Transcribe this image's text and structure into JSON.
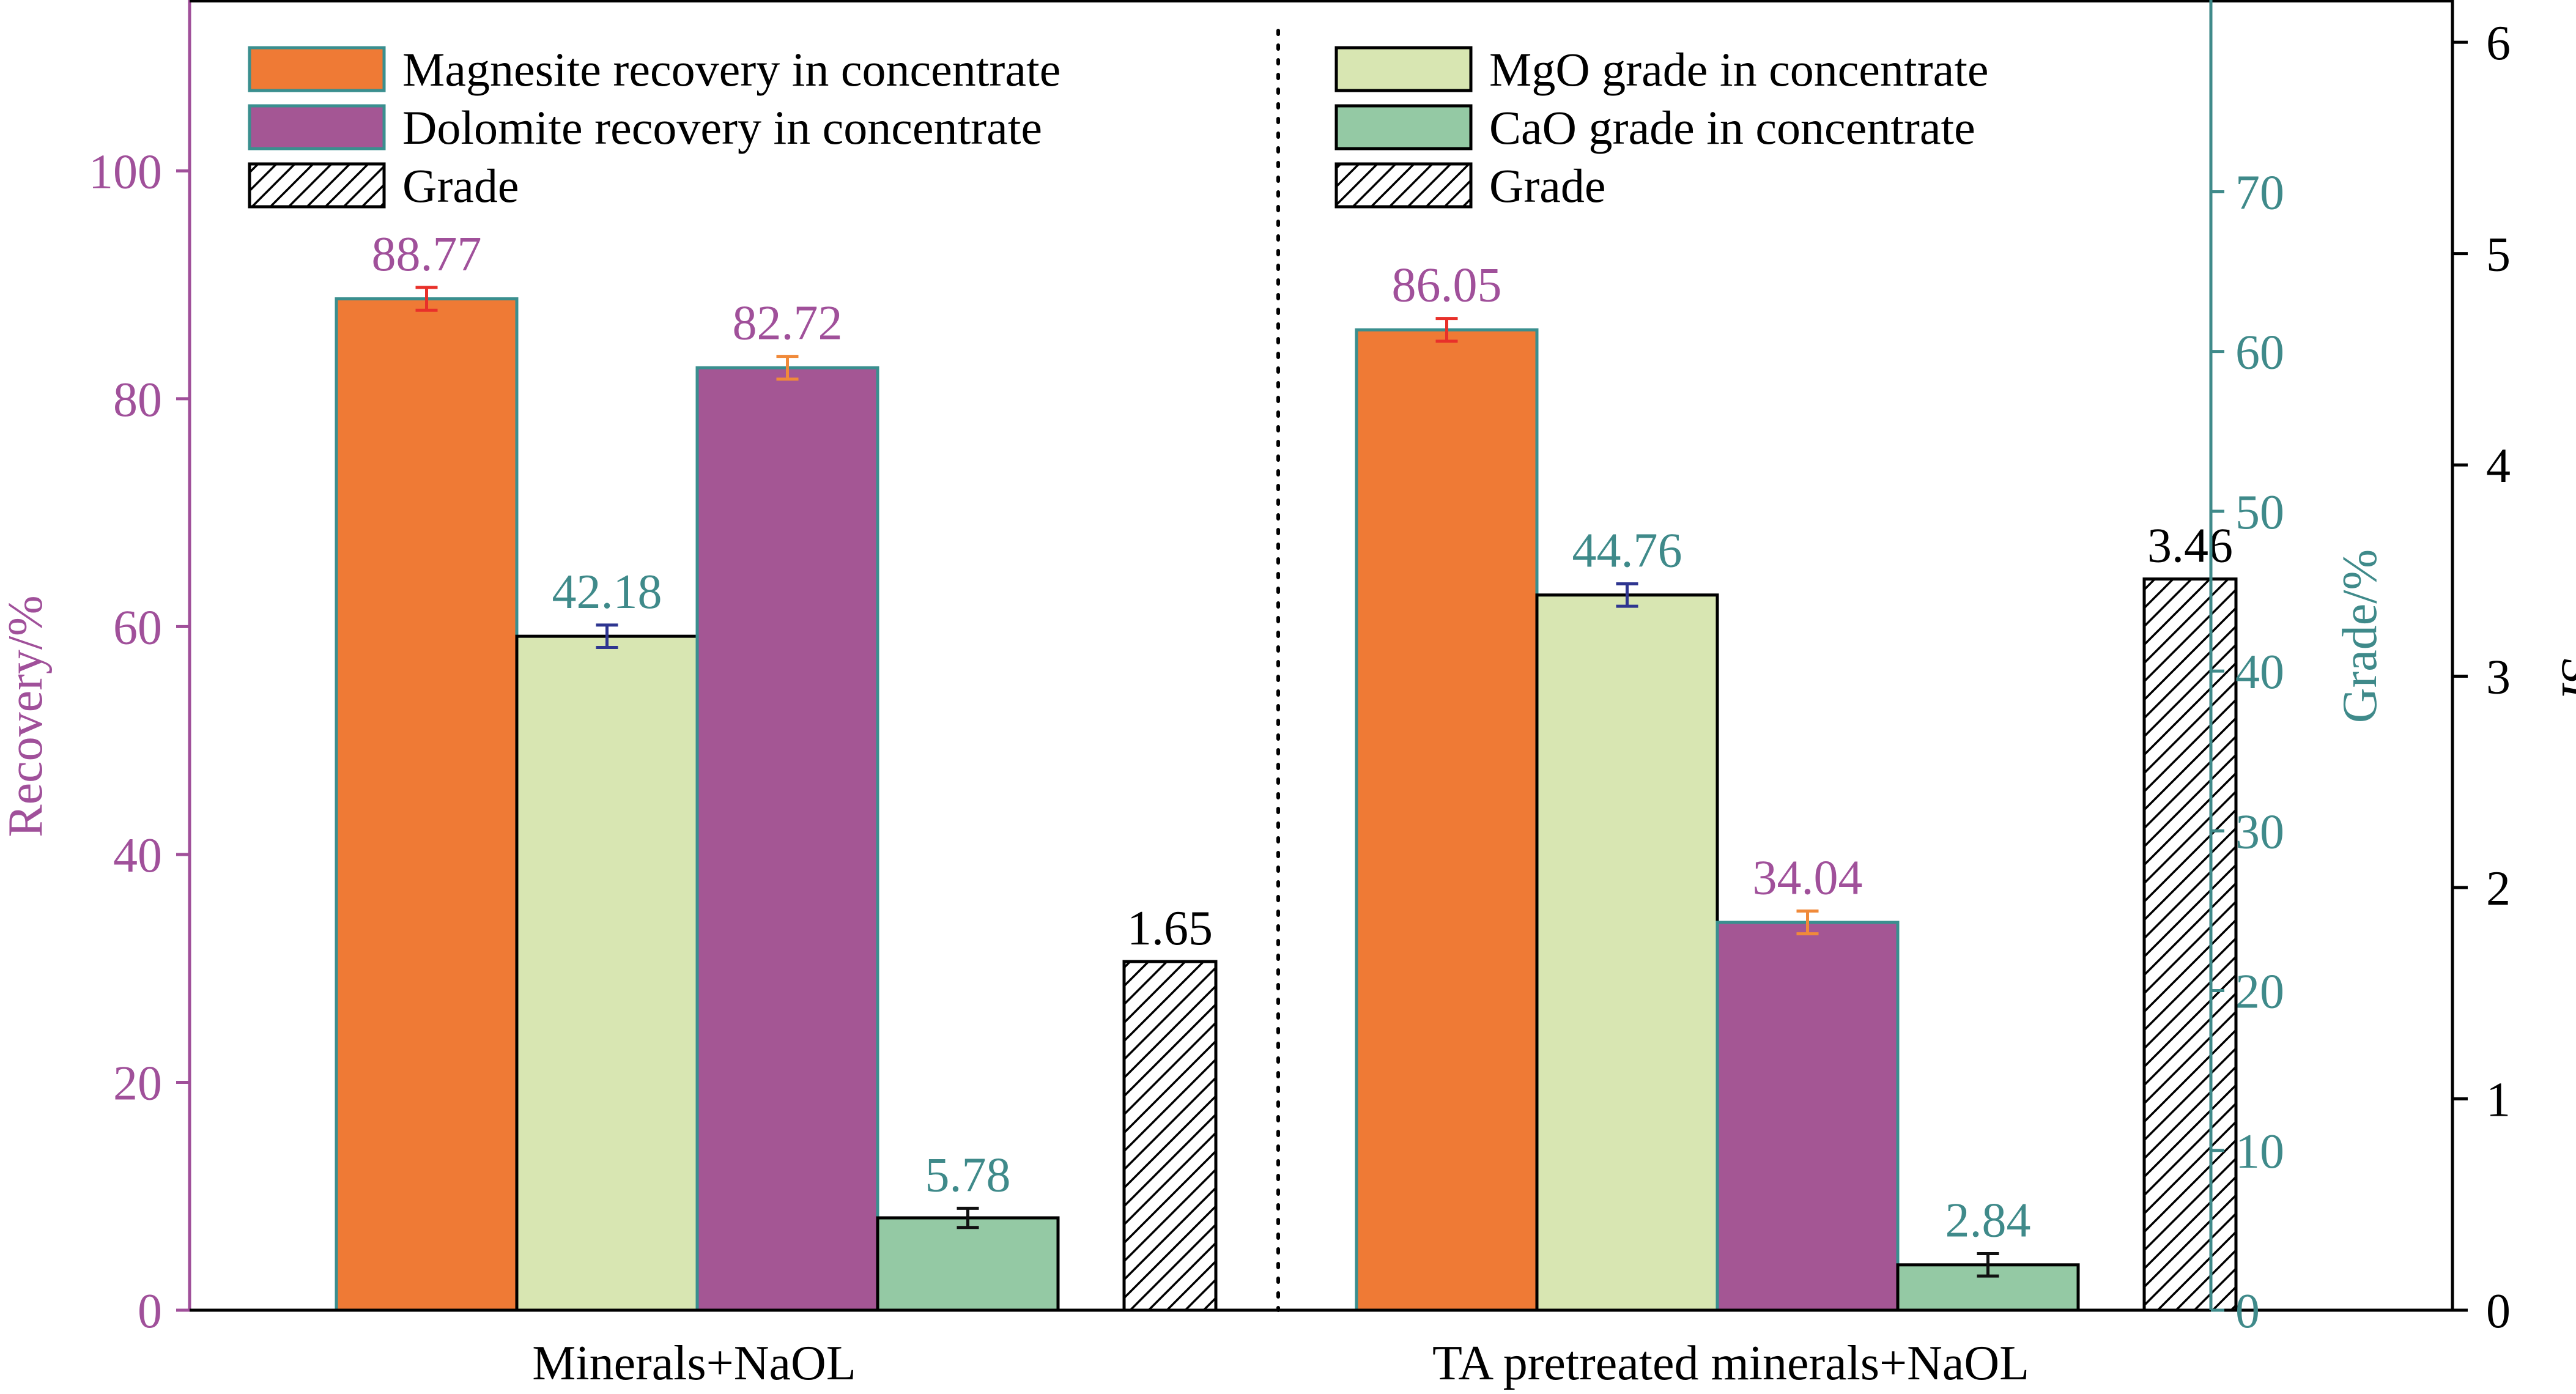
{
  "chart_data": {
    "type": "bar",
    "groups": [
      "Minerals+NaOL",
      "TA pretreated minerals+NaOL"
    ],
    "axes": {
      "recovery": {
        "label": "Recovery/%",
        "range": [
          0,
          115
        ],
        "ticks": [
          0,
          20,
          40,
          60,
          80,
          100
        ],
        "color": "#a0509a"
      },
      "grade": {
        "label": "Grade/%",
        "range": [
          0,
          82
        ],
        "ticks": [
          0,
          10,
          20,
          30,
          40,
          50,
          60,
          70
        ],
        "color": "#3f8a8a"
      },
      "si": {
        "label": "SI",
        "range": [
          0,
          6.2
        ],
        "ticks": [
          0,
          1,
          2,
          3,
          4,
          5,
          6
        ],
        "color": "#000000"
      }
    },
    "series": [
      {
        "name": "Magnesite recovery in concentrate",
        "axis": "recovery",
        "color": "#ef7a35",
        "labelColor": "#a0509a",
        "errorColor": "#e8302a",
        "values": [
          88.77,
          86.05
        ],
        "labels": [
          "88.77",
          "86.05"
        ],
        "err": [
          1.0,
          1.0
        ]
      },
      {
        "name": "MgO grade in concentrate",
        "axis": "grade",
        "color": "#d8e6b2",
        "labelColor": "#3f8a8a",
        "errorColor": "#2e3590",
        "values": [
          42.18,
          44.76
        ],
        "labels": [
          "42.18",
          "44.76"
        ],
        "err": [
          0.7,
          0.7
        ]
      },
      {
        "name": "Dolomite recovery in concentrate",
        "axis": "recovery",
        "color": "#a45694",
        "labelColor": "#a0509a",
        "errorColor": "#f08a3a",
        "values": [
          82.72,
          34.04
        ],
        "labels": [
          "82.72",
          "34.04"
        ],
        "err": [
          1.0,
          1.0
        ]
      },
      {
        "name": "CaO grade in concentrate",
        "axis": "grade",
        "color": "#94c9a4",
        "labelColor": "#3f8a8a",
        "errorColor": "#111111",
        "values": [
          5.78,
          2.84
        ],
        "labels": [
          "5.78",
          "2.84"
        ],
        "err": [
          0.6,
          0.7
        ]
      },
      {
        "name": "Grade",
        "axis": "si",
        "pattern": "hatch",
        "color": "#ffffff",
        "labelColor": "#000000",
        "values": [
          1.65,
          3.46
        ],
        "labels": [
          "1.65",
          "3.46"
        ]
      }
    ],
    "legends": [
      {
        "entries": [
          {
            "label": "Magnesite recovery in concentrate",
            "fill": "#ef7a35",
            "stroke": "#3a8f8f"
          },
          {
            "label": "Dolomite recovery in concentrate",
            "fill": "#a45694",
            "stroke": "#3a8f8f"
          },
          {
            "label": "Grade",
            "fill": "hatch",
            "stroke": "#000000"
          }
        ]
      },
      {
        "entries": [
          {
            "label": "MgO grade in concentrate",
            "fill": "#d8e6b2",
            "stroke": "#000000"
          },
          {
            "label": "CaO grade in concentrate",
            "fill": "#94c9a4",
            "stroke": "#000000"
          },
          {
            "label": "Grade",
            "fill": "hatch",
            "stroke": "#000000"
          }
        ]
      }
    ]
  }
}
